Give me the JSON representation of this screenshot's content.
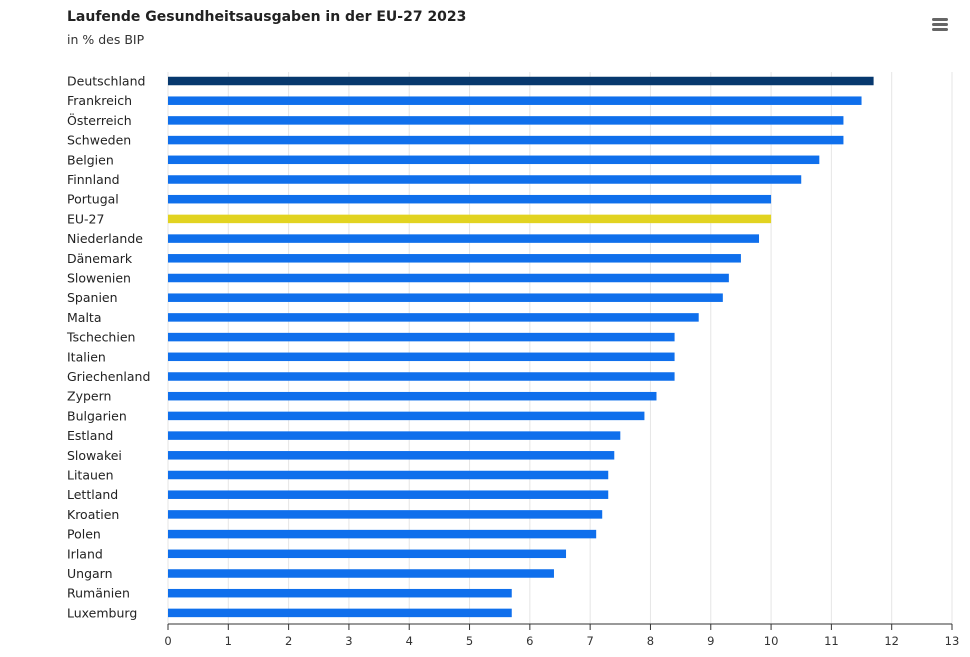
{
  "title": "Laufende Gesundheitsausgaben in der EU-27 2023",
  "subtitle": "in % des BIP",
  "menu_icon": "hamburger-menu-icon",
  "colors": {
    "default_bar": "#0f6fec",
    "highlight_bar": "#07386e",
    "eu_bar": "#e2d320",
    "grid": "#e6e6e6",
    "axis": "#333333"
  },
  "chart_data": {
    "type": "bar",
    "orientation": "horizontal",
    "title": "Laufende Gesundheitsausgaben in der EU-27 2023",
    "subtitle": "in % des BIP",
    "categories": [
      "Deutschland",
      "Frankreich",
      "Österreich",
      "Schweden",
      "Belgien",
      "Finnland",
      "Portugal",
      "EU-27",
      "Niederlande",
      "Dänemark",
      "Slowenien",
      "Spanien",
      "Malta",
      "Tschechien",
      "Italien",
      "Griechenland",
      "Zypern",
      "Bulgarien",
      "Estland",
      "Slowakei",
      "Litauen",
      "Lettland",
      "Kroatien",
      "Polen",
      "Irland",
      "Ungarn",
      "Rumänien",
      "Luxemburg"
    ],
    "values": [
      11.7,
      11.5,
      11.2,
      11.2,
      10.8,
      10.5,
      10.0,
      10.0,
      9.8,
      9.5,
      9.3,
      9.2,
      8.8,
      8.4,
      8.4,
      8.4,
      8.1,
      7.9,
      7.5,
      7.4,
      7.3,
      7.3,
      7.2,
      7.1,
      6.6,
      6.4,
      5.7,
      5.7
    ],
    "highlight": {
      "Deutschland": "#07386e",
      "EU-27": "#e2d320"
    },
    "xlim": [
      0,
      13
    ],
    "xticks": [
      "0",
      "1",
      "2",
      "3",
      "4",
      "5",
      "6",
      "7",
      "8",
      "9",
      "10",
      "11",
      "12",
      "13"
    ],
    "grid": true,
    "legend": "none"
  }
}
